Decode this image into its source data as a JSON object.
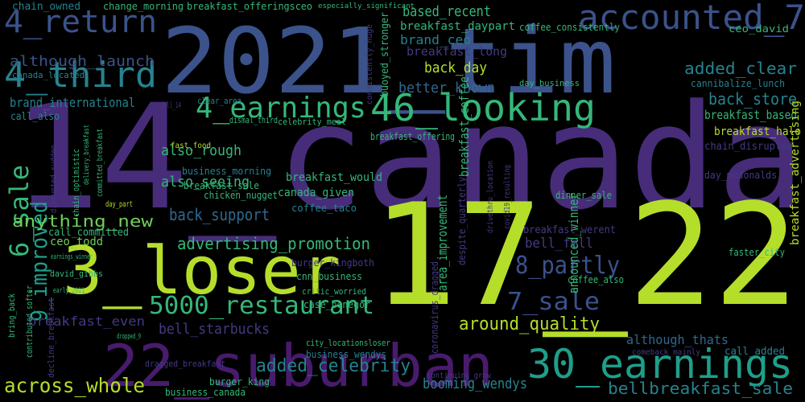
{
  "words": [
    "14_canada",
    "17_22",
    "2021_tim",
    "3_loser",
    "22_suburban",
    "accounted_7",
    "4_return",
    "4_third",
    "4_earnings",
    "46_looking",
    "30_earnings",
    "5000_restaurant",
    "6_sale",
    "9_improved",
    "across_whole",
    "added_celebrity",
    "booming_wendys",
    "bellbreakfast_sale",
    "around_quality",
    "7_sale",
    "8_partly",
    "bell_fell",
    "advertising_promotion",
    "anything_new",
    "back_support",
    "bell_starbucks",
    "breakfast_even",
    "based_recent",
    "breakfast_daypart",
    "brand_ceo",
    "breakfast_long",
    "back_day",
    "better_known",
    "although_launch",
    "added_clear",
    "back_store",
    "breakfast_based",
    "breakfast_halo",
    "brand_international",
    "call_also",
    "also_rough",
    "also_seeing",
    "breakfast_would",
    "canada_given",
    "coffee_taco",
    "business_morning",
    "breakfast_sale",
    "chicken_nugget",
    "ceo_todd",
    "call_committed",
    "breakfast_werent",
    "announced_winner",
    "breakfast_coffee",
    "area_improvement",
    "although_thats",
    "call_added",
    "breakfast_advertising",
    "chain_disrupted",
    "coffee_consistently",
    "ceo_david",
    "cannibalize_lunch",
    "consistently_huge",
    "buoyed_stronger",
    "chain_owned",
    "change_morning",
    "breakfast_offeringsceo",
    "especially_significant",
    "canada_located",
    "burger_kingboth",
    "cnn_business",
    "case_penegor",
    "critic_worried",
    "business_wendys",
    "burger_king",
    "business_canada",
    "dragged_breakfast",
    "dinner_sale",
    "day_mcdonalds",
    "coffee_also",
    "faster_city",
    "day_business",
    "fast_food",
    "david_gibbs",
    "dismal_third",
    "celebrity_meal",
    "breakfast_offering",
    "day_part",
    "continuing_grow",
    "comeback_mainly",
    "clear_area",
    "fell_14",
    "covid19_resulting",
    "drivethru_location",
    "despite_quarterly",
    "coronavirus_dragged",
    "bring_back",
    "disrupted_sudden",
    "chain_optimistic",
    "delivery_breakfast",
    "committed_breakfast",
    "contributed_softer",
    "decline_breakfast",
    "city_locationsloser",
    "early_2021",
    "dropped_9",
    "earnings_winner"
  ]
}
